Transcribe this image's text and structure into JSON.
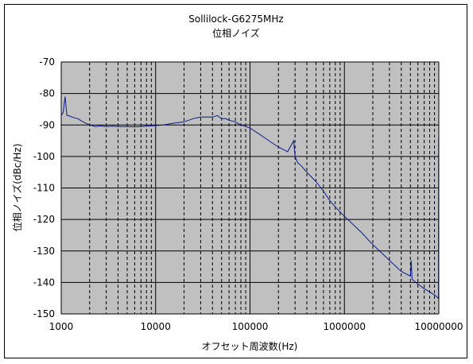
{
  "chart_data": {
    "type": "line",
    "title": "Sollilock-G6275MHz",
    "subtitle": "位相ノイズ",
    "xlabel": "オフセット周波数(Hz)",
    "ylabel": "位相ノイズ(dBc/Hz)",
    "x_scale": "log",
    "xlim": [
      1000,
      10000000
    ],
    "ylim": [
      -150,
      -70
    ],
    "grid": true,
    "x_tick_labels": [
      "1000",
      "10000",
      "100000",
      "1000000",
      "10000000"
    ],
    "y_tick_labels": [
      "-70",
      "-80",
      "-90",
      "-100",
      "-110",
      "-120",
      "-130",
      "-140",
      "-150"
    ],
    "y_ticks": [
      -70,
      -80,
      -90,
      -100,
      -110,
      -120,
      -130,
      -140,
      -150
    ],
    "series": [
      {
        "color": "#0b1a8c",
        "x": [
          1000,
          1050,
          1100,
          1150,
          1200,
          1300,
          1500,
          1700,
          2000,
          2300,
          2600,
          3000,
          3500,
          4000,
          5000,
          6000,
          7000,
          8000,
          9000,
          10000,
          12000,
          15000,
          20000,
          25000,
          30000,
          40000,
          45000,
          50000,
          55000,
          60000,
          70000,
          80000,
          90000,
          100000,
          120000,
          150000,
          200000,
          250000,
          290000,
          300000,
          320000,
          350000,
          400000,
          500000,
          600000,
          700000,
          800000,
          1000000,
          1500000,
          2000000,
          3000000,
          4000000,
          5000000,
          5100000,
          5200000,
          6000000,
          7000000,
          8000000,
          9000000,
          9500000,
          9800000,
          9900000,
          9950000,
          10000000
        ],
        "y": [
          -87,
          -86,
          -81,
          -87,
          -87,
          -87.5,
          -88,
          -89,
          -90,
          -90.5,
          -90.3,
          -90.5,
          -90.4,
          -90.5,
          -90.5,
          -90.6,
          -90.5,
          -90.4,
          -90.3,
          -90.2,
          -90,
          -89.5,
          -89,
          -88,
          -87.5,
          -87.5,
          -87,
          -88,
          -88,
          -88.5,
          -89,
          -90,
          -90.5,
          -91,
          -92.5,
          -94.5,
          -97,
          -98.5,
          -95,
          -100,
          -102,
          -103,
          -105,
          -108,
          -111,
          -114,
          -116,
          -119,
          -124,
          -128,
          -133,
          -136.5,
          -138,
          -133,
          -139,
          -140.5,
          -142,
          -143,
          -144,
          -144.5,
          -145,
          -145,
          -94,
          -144
        ]
      }
    ]
  }
}
